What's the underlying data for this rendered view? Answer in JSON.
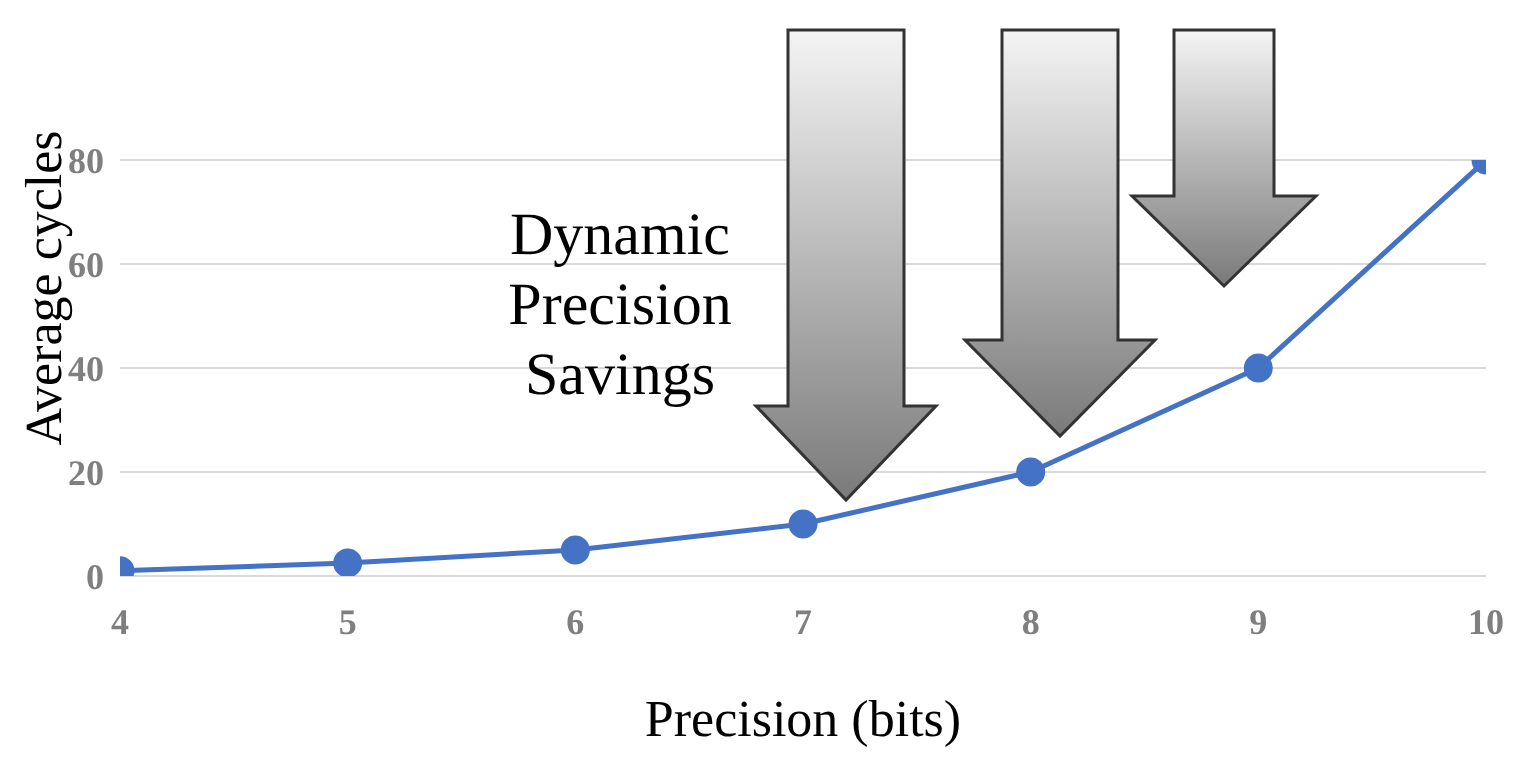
{
  "chart_data": {
    "type": "line",
    "xlabel": "Precision (bits)",
    "ylabel": "Average cycles",
    "x": [
      4,
      5,
      6,
      7,
      8,
      9,
      10
    ],
    "series": [
      {
        "color": "#4472c4",
        "values": [
          1,
          2.5,
          5,
          10,
          20,
          40,
          80
        ]
      }
    ],
    "xlim": [
      4,
      10
    ],
    "xticks": [
      4,
      5,
      6,
      7,
      8,
      9,
      10
    ],
    "ylim": [
      0,
      80
    ],
    "yticks": [
      0,
      20,
      40,
      60,
      80
    ],
    "grid": "y",
    "marker": "circle",
    "legend": false,
    "annotations": [
      "Dynamic Precision Savings"
    ]
  }
}
